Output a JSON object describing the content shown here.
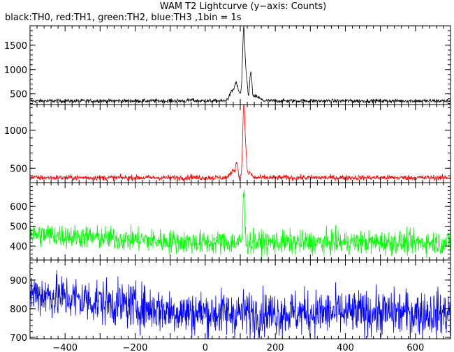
{
  "title": "WAM T2 Lightcurve (y−axis: Counts)",
  "subtitle": "black:TH0, red:TH1, green:TH2, blue:TH3 ,1bin = 1s",
  "chart_data": {
    "type": "line",
    "xlim": [
      -500,
      700
    ],
    "x_ticks": [
      -400,
      -200,
      0,
      200,
      400,
      600
    ],
    "x_tick_labels": [
      "−400",
      "−200",
      "0",
      "200",
      "400",
      "600"
    ],
    "grid": false,
    "panels": [
      {
        "name": "TH0",
        "color": "#000000",
        "ylim": [
          280,
          1900
        ],
        "y_ticks": [
          500,
          1000,
          1500
        ],
        "y_tick_labels": [
          "500",
          "1000",
          "1500"
        ],
        "baseline": 355,
        "noise": 20,
        "peaks": [
          [
            -40,
            20,
            6
          ],
          [
            78,
            200,
            8
          ],
          [
            88,
            250,
            4
          ],
          [
            97,
            150,
            5
          ],
          [
            110,
            1480,
            3.5
          ],
          [
            118,
            400,
            3
          ],
          [
            130,
            560,
            3
          ],
          [
            145,
            90,
            10
          ]
        ]
      },
      {
        "name": "TH1",
        "color": "#ff0000",
        "ylim": [
          310,
          1340
        ],
        "y_ticks": [
          500,
          1000
        ],
        "y_tick_labels": [
          "500",
          "1000"
        ],
        "baseline": 375,
        "noise": 18,
        "peaks": [
          [
            -40,
            15,
            5
          ],
          [
            80,
            100,
            7
          ],
          [
            90,
            160,
            3
          ],
          [
            110,
            960,
            3
          ],
          [
            116,
            250,
            3
          ],
          [
            128,
            70,
            4
          ]
        ]
      },
      {
        "name": "TH2",
        "color": "#00ff00",
        "ylim": [
          330,
          720
        ],
        "y_ticks": [
          400,
          500,
          600
        ],
        "y_tick_labels": [
          "400",
          "500",
          "600"
        ],
        "baseline_start": 460,
        "baseline_end": 418,
        "noise": 30,
        "peaks": [
          [
            110,
            250,
            2.5
          ]
        ]
      },
      {
        "name": "TH3",
        "color": "#0000ff",
        "ylim": [
          695,
          970
        ],
        "y_ticks": [
          700,
          800,
          900
        ],
        "y_tick_labels": [
          "700",
          "800",
          "900"
        ],
        "baseline_start": 855,
        "baseline_end": 785,
        "noise": 40,
        "peaks": []
      }
    ]
  }
}
